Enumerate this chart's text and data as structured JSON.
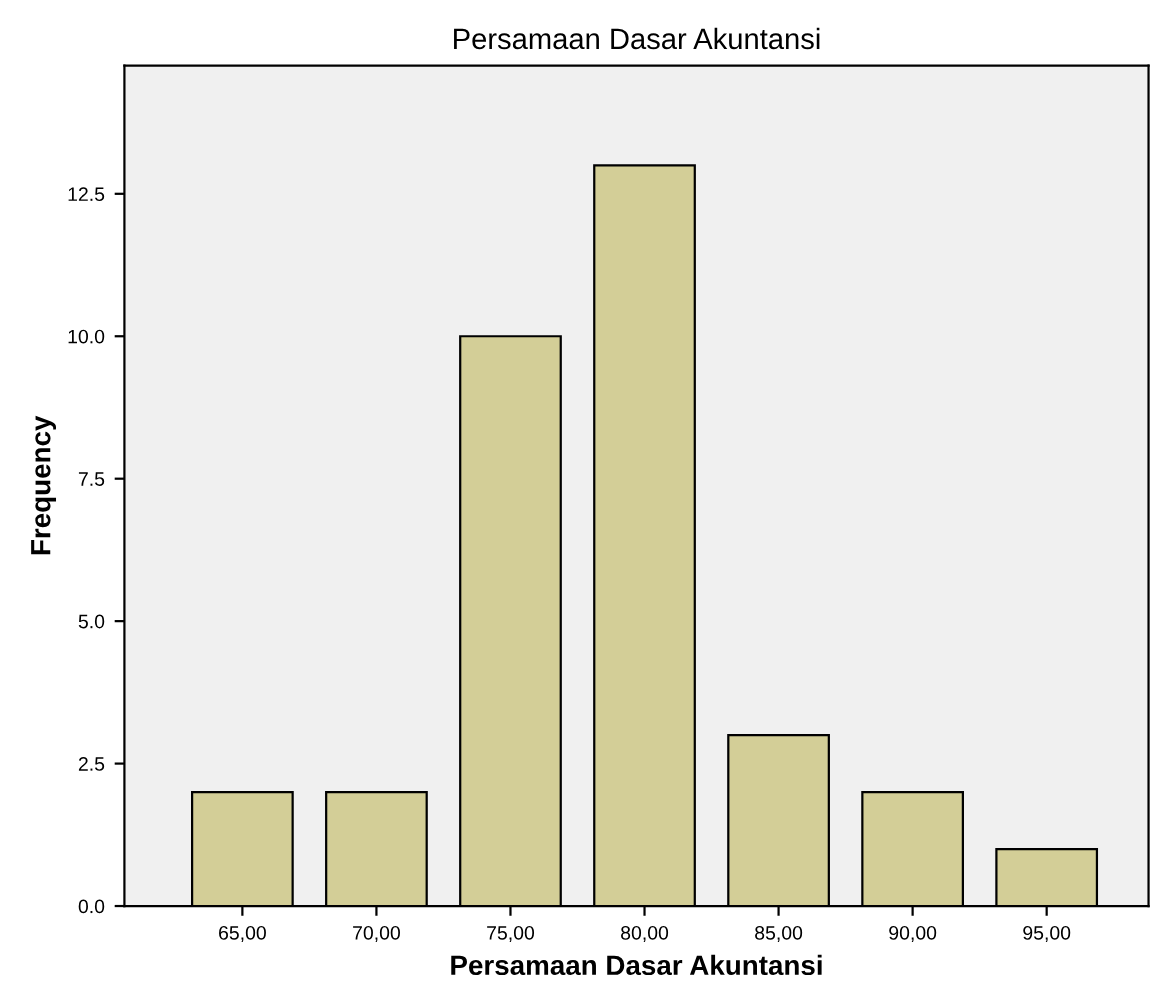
{
  "chart_data": {
    "type": "bar",
    "title": "Persamaan Dasar Akuntansi",
    "xlabel": "Persamaan Dasar Akuntansi",
    "ylabel": "Frequency",
    "categories": [
      "65,00",
      "70,00",
      "75,00",
      "80,00",
      "85,00",
      "90,00",
      "95,00"
    ],
    "values": [
      2,
      2,
      10,
      13,
      3,
      2,
      1
    ],
    "color": "#d3ce97",
    "ylim": [
      0,
      14.75
    ],
    "yticks": [
      {
        "value": 0,
        "label": "0.0"
      },
      {
        "value": 2.5,
        "label": "2.5"
      },
      {
        "value": 5,
        "label": "5.0"
      },
      {
        "value": 7.5,
        "label": "7.5"
      },
      {
        "value": 10,
        "label": "10.0"
      },
      {
        "value": 12.5,
        "label": "12.5"
      }
    ],
    "grid": false
  }
}
